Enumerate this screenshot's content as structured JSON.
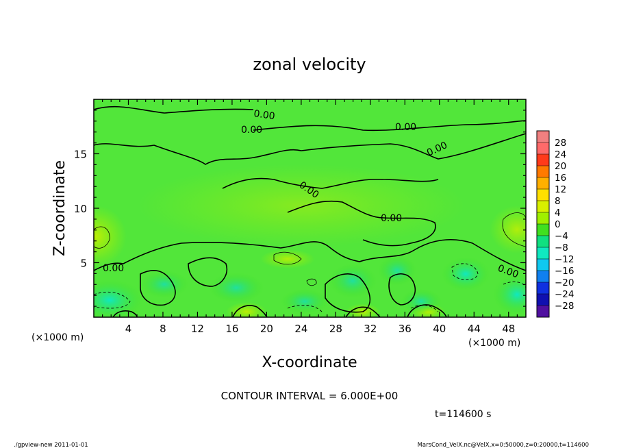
{
  "chart_data": {
    "type": "heatmap",
    "title": "zonal velocity",
    "xlabel": "X-coordinate",
    "ylabel": "Z-coordinate",
    "x_unit": "(×1000 m)",
    "z_unit": "(×1000 m)",
    "xlim": [
      0,
      50
    ],
    "ylim": [
      0,
      20
    ],
    "x_ticks": [
      4,
      8,
      12,
      16,
      20,
      24,
      28,
      32,
      36,
      40,
      44,
      48
    ],
    "y_ticks": [
      5,
      10,
      15
    ],
    "contour_label": "0.00",
    "contour_interval_text": "CONTOUR INTERVAL = 6.000E+00",
    "time_text": "t=114600 s",
    "colorbar": {
      "levels": [
        28,
        24,
        20,
        16,
        12,
        8,
        4,
        0,
        -4,
        -8,
        -12,
        -16,
        -20,
        -24,
        -28
      ],
      "colors": [
        "#f08080",
        "#ff6a6a",
        "#ff3a1a",
        "#ff7a00",
        "#ffb000",
        "#ffe000",
        "#d8f000",
        "#a0f000",
        "#40e020",
        "#10e080",
        "#10e8c0",
        "#10c8f0",
        "#1080f0",
        "#1030e0",
        "#1010b0",
        "#5010a0"
      ]
    },
    "footer_left": "./gpview-new   2011-01-01",
    "footer_right": "MarsCond_VelX.nc@VelX,x=0:50000,z=0:20000,t=114600"
  }
}
